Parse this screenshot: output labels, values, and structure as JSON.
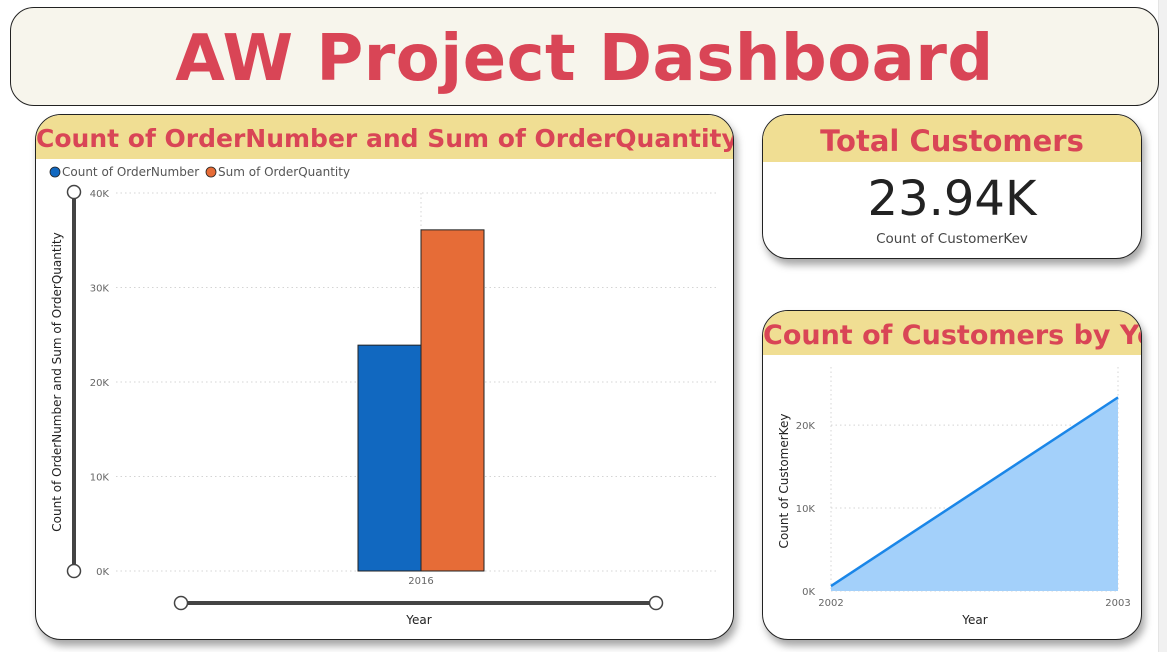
{
  "header": {
    "title": "AW Project Dashboard"
  },
  "bar_card": {
    "title": "Count of OrderNumber and Sum of OrderQuantity by Year"
  },
  "kpi_card": {
    "title": "Total Customers",
    "value": "23.94K",
    "subtitle": "Count of CustomerKev"
  },
  "area_card": {
    "title": "Count of Customers by Year"
  },
  "chart_data": [
    {
      "type": "bar",
      "title": "Count of OrderNumber and Sum of OrderQuantity by Year",
      "xlabel": "Year",
      "ylabel": "Count of OrderNumber and Sum of OrderQuantity",
      "categories": [
        "2016"
      ],
      "series": [
        {
          "name": "Count of OrderNumber",
          "values": [
            23900
          ],
          "color": "#1168c0"
        },
        {
          "name": "Sum of OrderQuantity",
          "values": [
            36100
          ],
          "color": "#e66c37"
        }
      ],
      "ylim": [
        0,
        40000
      ],
      "yticks": [
        0,
        10000,
        20000,
        30000,
        40000
      ],
      "ytick_labels": [
        "0K",
        "10K",
        "20K",
        "30K",
        "40K"
      ],
      "legend": "top-left",
      "grid": true
    },
    {
      "type": "area",
      "title": "Count of Customers by Year",
      "xlabel": "Year",
      "ylabel": "Count of CustomerKey",
      "x": [
        "2002",
        "2003"
      ],
      "values": [
        600,
        23340
      ],
      "ylim": [
        0,
        27000
      ],
      "yticks": [
        0,
        10000,
        20000
      ],
      "ytick_labels": [
        "0K",
        "10K",
        "20K"
      ],
      "line_color": "#1a86e8",
      "fill_color": "#a3d0fa",
      "grid": true
    }
  ]
}
